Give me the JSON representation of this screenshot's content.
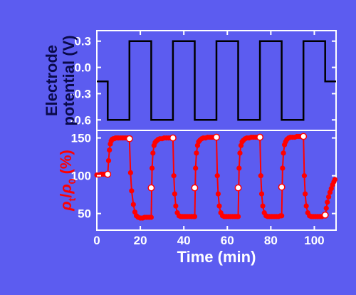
{
  "chart_data": [
    {
      "type": "line",
      "panel": "top",
      "ylabel": [
        "Electrode",
        "potential (V)"
      ],
      "xlim": [
        0,
        110
      ],
      "ylim": [
        -0.72,
        0.42
      ],
      "yticks": [
        -0.6,
        -0.3,
        0.0,
        0.3
      ],
      "ytick_labels": [
        "-0.6",
        "-0.3",
        "0.0",
        "0.3"
      ],
      "series": [
        {
          "line_color": "#000000",
          "x": [
            0,
            0.5,
            0.5,
            5,
            5,
            15,
            15,
            25,
            25,
            35,
            35,
            45,
            45,
            55,
            55,
            65,
            65,
            75,
            75,
            85,
            85,
            95,
            95,
            105,
            105,
            110
          ],
          "y": [
            -0.16,
            -0.16,
            -0.16,
            -0.16,
            -0.6,
            -0.6,
            0.3,
            0.3,
            -0.6,
            -0.6,
            0.3,
            0.3,
            -0.6,
            -0.6,
            0.3,
            0.3,
            -0.6,
            -0.6,
            0.3,
            0.3,
            -0.6,
            -0.6,
            0.3,
            0.3,
            -0.16,
            -0.16
          ]
        }
      ],
      "grid": false
    },
    {
      "type": "scatter",
      "panel": "bottom",
      "ylabel": "ρt/ρ0 (%)",
      "ylabel_parts": {
        "rho": "ρ",
        "sub1": "t",
        "slash": "/",
        "rho2": "ρ",
        "sub2": "0",
        "unit": " (%)"
      },
      "xlabel": "Time (min)",
      "xlim": [
        0,
        110
      ],
      "ylim": [
        28,
        160
      ],
      "xticks": [
        0,
        20,
        40,
        60,
        80,
        100
      ],
      "xtick_labels": [
        "0",
        "20",
        "40",
        "60",
        "80",
        "100"
      ],
      "yticks": [
        50,
        100,
        150
      ],
      "ytick_labels": [
        "50",
        "100",
        "150"
      ],
      "series": [
        {
          "color": "#ff0000",
          "marker": "circle",
          "hollow_markers": [
            [
              5,
              102
            ],
            [
              15,
              149
            ],
            [
              25,
              84
            ],
            [
              35,
              150
            ],
            [
              45,
              84
            ],
            [
              55,
              151
            ],
            [
              65,
              84
            ],
            [
              75,
              151
            ],
            [
              85,
              85
            ],
            [
              95,
              152
            ],
            [
              105,
              48
            ]
          ],
          "filled_markers_x": [
            0,
            1,
            2,
            3,
            4,
            5,
            5.4,
            5.8,
            6.2,
            6.6,
            7,
            7.5,
            8,
            8.6,
            9.3,
            10,
            11,
            12,
            13,
            14,
            15,
            15.5,
            16,
            16.8,
            17.5,
            18.2,
            19,
            20,
            21,
            22,
            23,
            24,
            25,
            25.4,
            25.8,
            26.3,
            26.8,
            27.4,
            28.2,
            29,
            30,
            31,
            32,
            33,
            34,
            35,
            35.4,
            35.8,
            36.3,
            37,
            37.8,
            38.6,
            39.5,
            40.5,
            41.5,
            42.5,
            43.5,
            44.5,
            45,
            45.4,
            45.8,
            46.3,
            46.8,
            47.4,
            48.2,
            49,
            50,
            51,
            52,
            53,
            54,
            55,
            55.4,
            55.8,
            56.3,
            57,
            57.8,
            58.6,
            59.5,
            60.5,
            61.5,
            62.5,
            63.5,
            64.5,
            65,
            65.4,
            65.8,
            66.3,
            66.8,
            67.4,
            68.2,
            69,
            70,
            71,
            72,
            73,
            74,
            75,
            75.4,
            75.8,
            76.3,
            77,
            77.8,
            78.6,
            79.5,
            80.5,
            81.5,
            82.5,
            83.5,
            84.5,
            85,
            85.4,
            85.8,
            86.3,
            86.8,
            87.4,
            88.2,
            89,
            90,
            91,
            92,
            93,
            94,
            95,
            95.4,
            95.8,
            96.3,
            97,
            97.8,
            98.6,
            99.5,
            100.5,
            101.5,
            102.5,
            103.5,
            104.5,
            105,
            105.5,
            106,
            106.6,
            107.2,
            107.8,
            108.4,
            109,
            109.5
          ],
          "filled_markers_y": [
            101,
            101,
            102,
            102,
            102,
            102,
            120,
            134,
            142,
            146,
            148,
            149,
            149,
            150,
            150,
            150,
            150,
            150,
            150,
            150,
            149,
            104,
            80,
            62,
            52,
            47,
            45,
            44,
            44,
            45,
            45,
            45,
            45,
            110,
            130,
            140,
            144,
            146,
            148,
            149,
            149,
            150,
            150,
            150,
            150,
            150,
            100,
            76,
            60,
            51,
            47,
            46,
            46,
            46,
            46,
            46,
            46,
            46,
            46,
            110,
            130,
            140,
            145,
            147,
            149,
            150,
            150,
            151,
            151,
            151,
            151,
            151,
            100,
            76,
            60,
            51,
            47,
            46,
            46,
            46,
            46,
            46,
            46,
            46,
            46,
            110,
            130,
            140,
            145,
            147,
            149,
            150,
            150,
            151,
            151,
            151,
            151,
            151,
            100,
            76,
            60,
            51,
            47,
            46,
            46,
            46,
            46,
            46,
            46,
            47,
            47,
            110,
            130,
            141,
            145,
            148,
            150,
            151,
            151,
            151,
            152,
            152,
            152,
            152,
            100,
            76,
            60,
            51,
            47,
            46,
            46,
            46,
            46,
            46,
            46,
            47,
            47,
            57,
            65,
            72,
            78,
            83,
            88,
            92,
            95
          ]
        }
      ],
      "grid": false
    }
  ],
  "colors": {
    "background": "#5c5cf0",
    "frame": "#ffffff",
    "top_line": "#000000",
    "data": "#ff0000",
    "top_ylabel": "#0a0a4a",
    "bottom_ylabel": "#ff0000",
    "xlabel": "#ffffff",
    "ticks": "#ffffff"
  }
}
